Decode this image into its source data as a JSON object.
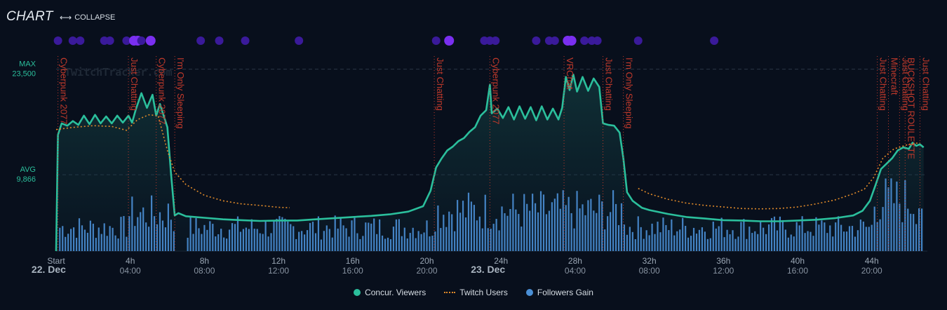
{
  "header": {
    "title": "CHART",
    "collapse_label": "COLLAPSE"
  },
  "colors": {
    "viewers": "#2bbf9c",
    "twitch": "#e08a2a",
    "followers": "#4a8fd6",
    "game_label": "#c0392b",
    "dot_dim": "#3a1a9a",
    "dot_bright": "#7a2ff0"
  },
  "chart_data": {
    "type": "line",
    "title": "CHART",
    "y_reference_labels": [
      {
        "name": "MAX",
        "value": 23500,
        "label": "23,500"
      },
      {
        "name": "AVG",
        "value": 9866,
        "label": "9,866"
      }
    ],
    "ylim": [
      0,
      27000
    ],
    "xlim": [
      0,
      47
    ],
    "x_ticks": [
      {
        "h": 0,
        "top": "Start",
        "bottom": ""
      },
      {
        "h": 4,
        "top": "4h",
        "bottom": "04:00"
      },
      {
        "h": 8,
        "top": "8h",
        "bottom": "08:00"
      },
      {
        "h": 12,
        "top": "12h",
        "bottom": "12:00"
      },
      {
        "h": 16,
        "top": "16h",
        "bottom": "16:00"
      },
      {
        "h": 20,
        "top": "20h",
        "bottom": "20:00"
      },
      {
        "h": 24,
        "top": "24h",
        "bottom": ""
      },
      {
        "h": 28,
        "top": "28h",
        "bottom": "04:00"
      },
      {
        "h": 32,
        "top": "32h",
        "bottom": "08:00"
      },
      {
        "h": 36,
        "top": "36h",
        "bottom": "12:00"
      },
      {
        "h": 40,
        "top": "40h",
        "bottom": "16:00"
      },
      {
        "h": 44,
        "top": "44h",
        "bottom": "20:00"
      }
    ],
    "date_labels": [
      {
        "h": -0.4,
        "label": "22. Dec"
      },
      {
        "h": 23.3,
        "label": "23. Dec"
      }
    ],
    "watermark": "TwitchTracker.com",
    "game_changes": [
      {
        "h": 0.1,
        "game": "Cyberpunk 2077"
      },
      {
        "h": 3.9,
        "game": "Just Chatting"
      },
      {
        "h": 5.4,
        "game": "Cyberpunk 2077"
      },
      {
        "h": 6.4,
        "game": "I'm Only Sleeping"
      },
      {
        "h": 20.4,
        "game": "Just Chatting"
      },
      {
        "h": 23.4,
        "game": "Cyberpunk 2077"
      },
      {
        "h": 27.4,
        "game": "VRChat"
      },
      {
        "h": 29.5,
        "game": "Just Chatting"
      },
      {
        "h": 30.6,
        "game": "I'm Only Sleeping"
      },
      {
        "h": 44.3,
        "game": "Just Chatting"
      },
      {
        "h": 44.9,
        "game": "Minecraft"
      },
      {
        "h": 45.5,
        "game": "Just Chatting"
      },
      {
        "h": 45.8,
        "game": "BUCKSHOT ROULETTE"
      },
      {
        "h": 46.6,
        "game": "Just Chatting"
      }
    ],
    "event_dots": [
      {
        "h": 0.1,
        "bright": false
      },
      {
        "h": 0.9,
        "bright": false
      },
      {
        "h": 1.3,
        "bright": false
      },
      {
        "h": 2.6,
        "bright": false
      },
      {
        "h": 2.9,
        "bright": false
      },
      {
        "h": 3.8,
        "bright": false
      },
      {
        "h": 4.2,
        "bright": true
      },
      {
        "h": 4.4,
        "bright": true
      },
      {
        "h": 4.6,
        "bright": false
      },
      {
        "h": 5.1,
        "bright": true
      },
      {
        "h": 7.8,
        "bright": false
      },
      {
        "h": 8.8,
        "bright": false
      },
      {
        "h": 10.2,
        "bright": false
      },
      {
        "h": 13.1,
        "bright": false
      },
      {
        "h": 20.5,
        "bright": false
      },
      {
        "h": 21.2,
        "bright": true
      },
      {
        "h": 23.1,
        "bright": false
      },
      {
        "h": 23.4,
        "bright": false
      },
      {
        "h": 23.7,
        "bright": false
      },
      {
        "h": 25.9,
        "bright": false
      },
      {
        "h": 26.6,
        "bright": false
      },
      {
        "h": 26.9,
        "bright": false
      },
      {
        "h": 27.6,
        "bright": true
      },
      {
        "h": 27.8,
        "bright": true
      },
      {
        "h": 28.5,
        "bright": false
      },
      {
        "h": 28.9,
        "bright": false
      },
      {
        "h": 29.2,
        "bright": false
      },
      {
        "h": 31.4,
        "bright": false
      },
      {
        "h": 35.5,
        "bright": false
      }
    ],
    "series": [
      {
        "name": "Concur. Viewers",
        "type": "area",
        "points": [
          [
            0,
            0
          ],
          [
            0.1,
            15000
          ],
          [
            0.3,
            16500
          ],
          [
            0.6,
            16200
          ],
          [
            0.9,
            16800
          ],
          [
            1.2,
            16300
          ],
          [
            1.5,
            17500
          ],
          [
            1.8,
            16400
          ],
          [
            2.1,
            17600
          ],
          [
            2.4,
            16500
          ],
          [
            2.7,
            17400
          ],
          [
            3.0,
            16500
          ],
          [
            3.3,
            17500
          ],
          [
            3.6,
            16600
          ],
          [
            3.9,
            17500
          ],
          [
            4.1,
            16600
          ],
          [
            4.3,
            18300
          ],
          [
            4.6,
            20400
          ],
          [
            4.9,
            18500
          ],
          [
            5.2,
            20200
          ],
          [
            5.4,
            17500
          ],
          [
            5.6,
            19000
          ],
          [
            5.8,
            17500
          ],
          [
            6.0,
            16000
          ],
          [
            6.2,
            10000
          ],
          [
            6.4,
            4600
          ],
          [
            6.6,
            4900
          ],
          [
            7.0,
            4500
          ],
          [
            8,
            4300
          ],
          [
            9,
            4100
          ],
          [
            10,
            4000
          ],
          [
            11,
            3900
          ],
          [
            12,
            3950
          ],
          [
            13,
            3950
          ],
          [
            14,
            4100
          ],
          [
            15,
            4250
          ],
          [
            16,
            4400
          ],
          [
            17,
            4550
          ],
          [
            18,
            4750
          ],
          [
            19,
            5100
          ],
          [
            19.8,
            5800
          ],
          [
            20.2,
            7800
          ],
          [
            20.5,
            10800
          ],
          [
            20.8,
            12000
          ],
          [
            21.1,
            13000
          ],
          [
            21.4,
            13500
          ],
          [
            21.7,
            14200
          ],
          [
            22.0,
            14600
          ],
          [
            22.3,
            15400
          ],
          [
            22.6,
            16000
          ],
          [
            22.9,
            17500
          ],
          [
            23.2,
            18200
          ],
          [
            23.4,
            21500
          ],
          [
            23.5,
            17800
          ],
          [
            23.8,
            18400
          ],
          [
            24.1,
            17200
          ],
          [
            24.4,
            18600
          ],
          [
            24.7,
            17000
          ],
          [
            25.0,
            18700
          ],
          [
            25.3,
            17100
          ],
          [
            25.6,
            18600
          ],
          [
            25.9,
            16900
          ],
          [
            26.2,
            18700
          ],
          [
            26.5,
            17000
          ],
          [
            26.8,
            18400
          ],
          [
            27.1,
            17000
          ],
          [
            27.3,
            18500
          ],
          [
            27.5,
            22500
          ],
          [
            27.7,
            20800
          ],
          [
            27.9,
            22800
          ],
          [
            28.1,
            20600
          ],
          [
            28.4,
            22500
          ],
          [
            28.7,
            20700
          ],
          [
            29.0,
            22300
          ],
          [
            29.3,
            21200
          ],
          [
            29.5,
            16500
          ],
          [
            29.8,
            16300
          ],
          [
            30.1,
            16200
          ],
          [
            30.4,
            15300
          ],
          [
            30.6,
            12000
          ],
          [
            30.8,
            7600
          ],
          [
            31.1,
            6500
          ],
          [
            31.6,
            5600
          ],
          [
            32,
            5300
          ],
          [
            33,
            4800
          ],
          [
            34,
            4400
          ],
          [
            35,
            4200
          ],
          [
            36,
            4000
          ],
          [
            37,
            3950
          ],
          [
            38,
            3850
          ],
          [
            39,
            3850
          ],
          [
            40,
            3950
          ],
          [
            41,
            4050
          ],
          [
            42,
            4250
          ],
          [
            43,
            4600
          ],
          [
            43.5,
            5200
          ],
          [
            43.9,
            6500
          ],
          [
            44.2,
            8500
          ],
          [
            44.5,
            10600
          ],
          [
            44.8,
            11300
          ],
          [
            45.1,
            12000
          ],
          [
            45.4,
            13000
          ],
          [
            45.7,
            13400
          ],
          [
            46.0,
            13200
          ],
          [
            46.2,
            14000
          ],
          [
            46.4,
            13600
          ],
          [
            46.6,
            13800
          ],
          [
            46.8,
            13400
          ]
        ]
      },
      {
        "name": "Twitch Users",
        "type": "line",
        "points": [
          [
            0,
            15700
          ],
          [
            1,
            16000
          ],
          [
            2,
            16200
          ],
          [
            3,
            16100
          ],
          [
            3.8,
            15600
          ],
          [
            4.4,
            17000
          ],
          [
            5.0,
            17600
          ],
          [
            5.5,
            17500
          ],
          [
            6.0,
            13000
          ],
          [
            6.4,
            10200
          ],
          [
            7,
            8600
          ],
          [
            8,
            7200
          ],
          [
            9,
            6500
          ],
          [
            10,
            6100
          ],
          [
            11,
            5900
          ],
          [
            12,
            5650
          ],
          [
            12.6,
            5600
          ],
          [
            31.4,
            8100
          ],
          [
            32,
            7400
          ],
          [
            33,
            6700
          ],
          [
            34,
            6200
          ],
          [
            35,
            5900
          ],
          [
            36,
            5700
          ],
          [
            37,
            5500
          ],
          [
            38,
            5450
          ],
          [
            39,
            5500
          ],
          [
            40,
            5700
          ],
          [
            41,
            6100
          ],
          [
            42,
            6600
          ],
          [
            43,
            7400
          ],
          [
            43.6,
            8000
          ],
          [
            44.1,
            9500
          ],
          [
            44.6,
            12000
          ],
          [
            45.2,
            13200
          ],
          [
            46.0,
            13800
          ],
          [
            46.6,
            14000
          ]
        ]
      },
      {
        "name": "Followers Gain",
        "type": "bar"
      }
    ]
  }
}
